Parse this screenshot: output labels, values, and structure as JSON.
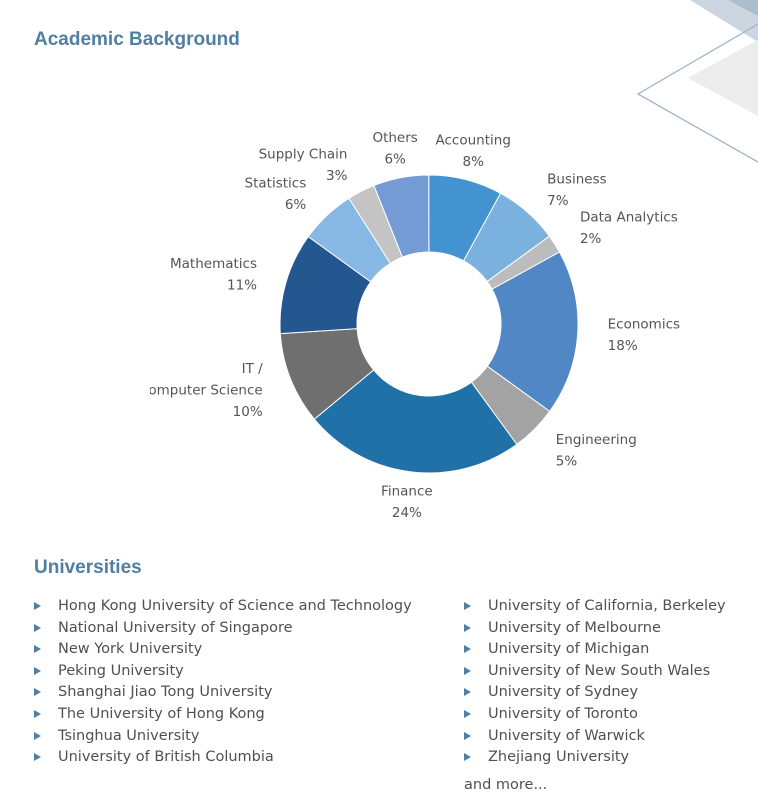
{
  "headings": {
    "academic": "Academic Background",
    "universities": "Universities"
  },
  "chart_data": {
    "type": "pie",
    "donut": true,
    "unit": "%",
    "slices": [
      {
        "label": "Accounting",
        "value": 8,
        "color": "#4393d1"
      },
      {
        "label": "Business",
        "value": 7,
        "color": "#7bb1df"
      },
      {
        "label": "Data Analytics",
        "value": 2,
        "color": "#bcbcbc"
      },
      {
        "label": "Economics",
        "value": 18,
        "color": "#5287c6"
      },
      {
        "label": "Engineering",
        "value": 5,
        "color": "#a3a3a3"
      },
      {
        "label": "Finance",
        "value": 24,
        "color": "#2071a8"
      },
      {
        "label": "IT / Computer Science",
        "value": 10,
        "color": "#6f6f6f"
      },
      {
        "label": "Mathematics",
        "value": 11,
        "color": "#245690"
      },
      {
        "label": "Statistics",
        "value": 6,
        "color": "#87b8e3"
      },
      {
        "label": "Supply Chain",
        "value": 3,
        "color": "#c4c4c4"
      },
      {
        "label": "Others",
        "value": 6,
        "color": "#759bd4"
      }
    ]
  },
  "universities": {
    "col1": [
      "Hong Kong University of Science and Technology",
      "National University of Singapore",
      "New York University",
      "Peking University",
      "Shanghai Jiao Tong University",
      "The University of Hong Kong",
      "Tsinghua University",
      "University of British Columbia"
    ],
    "col2": [
      "University of California, Berkeley",
      "University of Melbourne",
      "University of Michigan",
      "University of New South Wales",
      "University of Sydney",
      "University of Toronto",
      "University of Warwick",
      "Zhejiang University"
    ],
    "more": "and more..."
  }
}
